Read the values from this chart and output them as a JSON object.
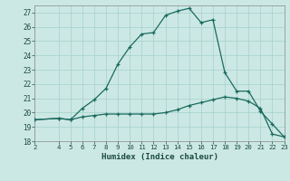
{
  "xlabel": "Humidex (Indice chaleur)",
  "background_color": "#cce8e4",
  "grid_color": "#aad4ce",
  "line_color": "#1a6b5e",
  "x_upper": [
    2,
    4,
    5,
    6,
    7,
    8,
    9,
    10,
    11,
    12,
    13,
    14,
    15,
    16,
    17,
    18,
    19,
    20,
    21,
    22,
    23
  ],
  "y_upper": [
    19.5,
    19.6,
    19.5,
    20.3,
    20.9,
    21.7,
    23.4,
    24.6,
    25.5,
    25.6,
    26.8,
    27.1,
    27.3,
    26.3,
    26.5,
    22.8,
    21.5,
    21.5,
    20.1,
    19.2,
    18.3
  ],
  "x_lower": [
    2,
    4,
    5,
    6,
    7,
    8,
    9,
    10,
    11,
    12,
    13,
    14,
    15,
    16,
    17,
    18,
    19,
    20,
    21,
    22,
    23
  ],
  "y_lower": [
    19.5,
    19.6,
    19.5,
    19.7,
    19.8,
    19.9,
    19.9,
    19.9,
    19.9,
    19.9,
    20.0,
    20.2,
    20.5,
    20.7,
    20.9,
    21.1,
    21.0,
    20.8,
    20.3,
    18.5,
    18.3
  ],
  "ylim": [
    18,
    27.5
  ],
  "xlim": [
    2,
    23
  ],
  "yticks": [
    18,
    19,
    20,
    21,
    22,
    23,
    24,
    25,
    26,
    27
  ],
  "xticks": [
    2,
    4,
    5,
    6,
    7,
    8,
    9,
    10,
    11,
    12,
    13,
    14,
    15,
    16,
    17,
    18,
    19,
    20,
    21,
    22,
    23
  ]
}
